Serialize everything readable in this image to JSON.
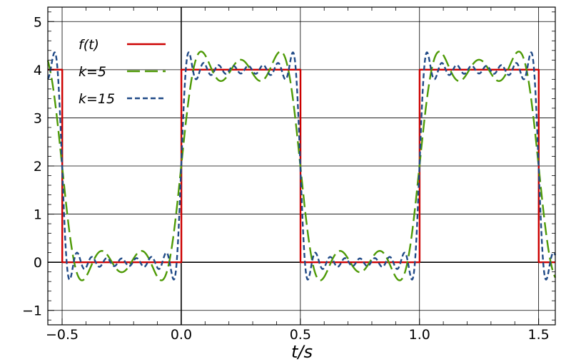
{
  "chart_data": {
    "type": "line",
    "title": "",
    "xlabel": "t/s",
    "ylabel": "",
    "xlim": [
      -0.56,
      1.57
    ],
    "ylim": [
      -1.3,
      5.3
    ],
    "x_ticks": [
      -0.5,
      0.0,
      0.5,
      1.0,
      1.5
    ],
    "x_tick_labels": [
      "−0.5",
      "0.0",
      "0.5",
      "1.0",
      "1.5"
    ],
    "y_ticks": [
      -1,
      0,
      1,
      2,
      3,
      4,
      5
    ],
    "y_tick_labels": [
      "−1",
      "0",
      "1",
      "2",
      "3",
      "4",
      "5"
    ],
    "grid": true,
    "legend_position": "top-left",
    "series": [
      {
        "name": "f(t)",
        "color": "#cc0000",
        "style": "solid",
        "kind": "square",
        "period": 1.0,
        "high": 4,
        "low": 0,
        "high_interval": [
          0.0,
          0.5
        ]
      },
      {
        "name": "k=5",
        "color": "#4e9a06",
        "style": "long-dash",
        "kind": "fourier",
        "harmonics": 5
      },
      {
        "name": "k=15",
        "color": "#204a87",
        "style": "short-dash",
        "kind": "fourier",
        "harmonics": 15
      }
    ]
  }
}
